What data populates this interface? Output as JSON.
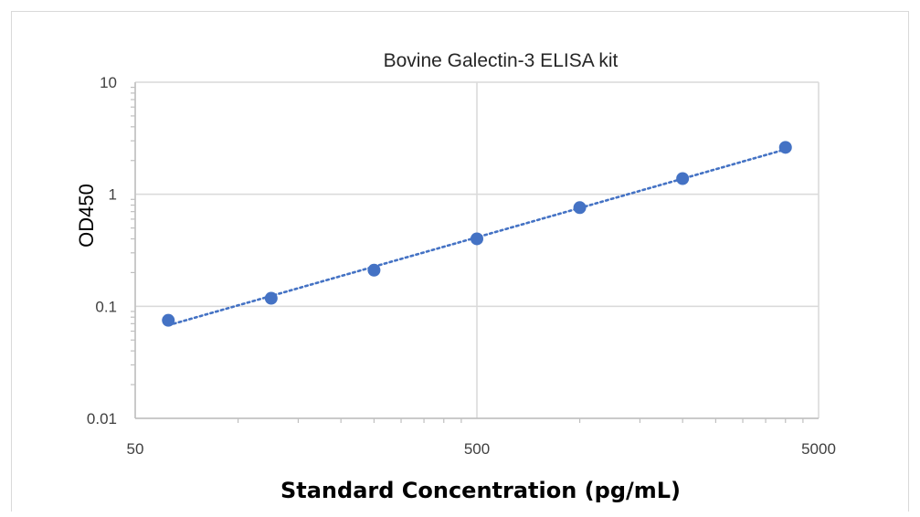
{
  "chart_data": {
    "type": "scatter",
    "title": "Bovine Galectin-3 ELISA kit",
    "xlabel": "Standard Concentration (pg/mL)",
    "ylabel": "OD450",
    "x_scale": "log",
    "y_scale": "log",
    "xlim": [
      50,
      5000
    ],
    "ylim": [
      0.01,
      10
    ],
    "x_ticks": [
      "50",
      "500",
      "5000"
    ],
    "y_ticks": [
      "10",
      "1",
      "0.1",
      "0.01"
    ],
    "grid": "major",
    "legend": "none",
    "trendline": "dotted",
    "series": [
      {
        "x": [
          62.5,
          125,
          250,
          500,
          1000,
          2000,
          4000
        ],
        "y": [
          0.075,
          0.118,
          0.21,
          0.4,
          0.76,
          1.38,
          2.62
        ]
      }
    ],
    "colors": {
      "marker": "#4472c4",
      "trendline": "#4472c4",
      "grid": "#d9d9d9",
      "axis": "#bfbfbf"
    }
  }
}
